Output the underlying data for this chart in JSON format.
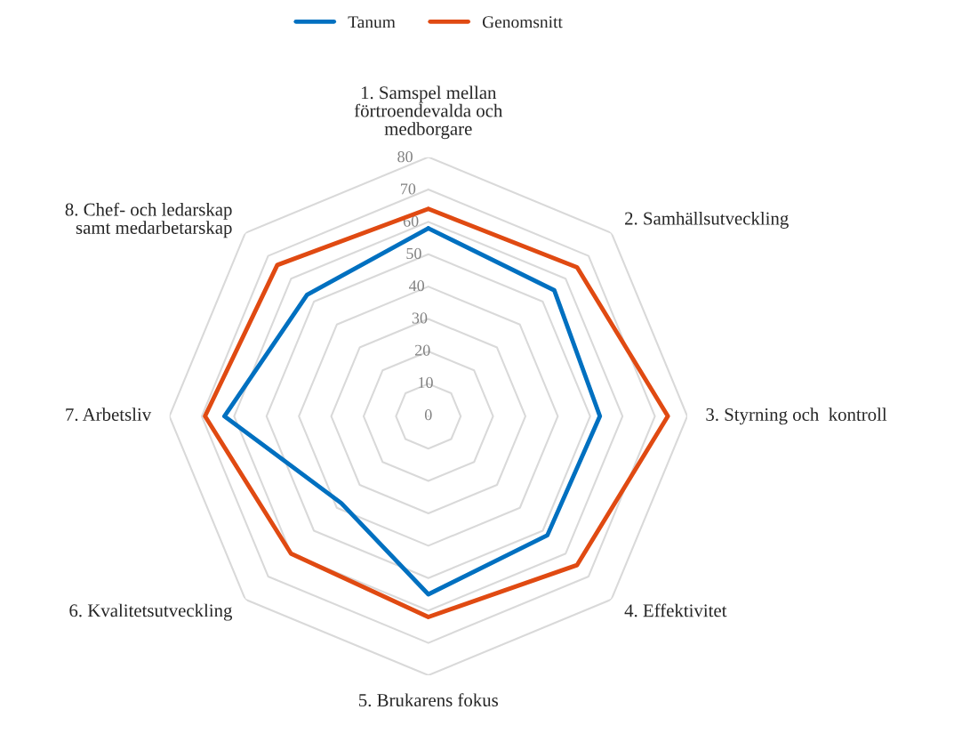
{
  "chart_data": {
    "type": "radar",
    "categories": [
      "1. Samspel mellan\nförtroendevalda och\nmedborgare",
      "2. Samhällsutveckling",
      "3. Styrning och  kontroll",
      "4. Effektivitet",
      "5. Brukarens fokus",
      "6. Kvalitetsutveckling",
      "7. Arbetsliv",
      "8. Chef- och ledarskap\nsamt medarbetarskap"
    ],
    "series": [
      {
        "name": "Tanum",
        "color": "#0070c0",
        "values": [
          58,
          55,
          53,
          52,
          55,
          38,
          63,
          53
        ]
      },
      {
        "name": "Genomsnitt",
        "color": "#e04a12",
        "values": [
          64,
          65,
          74,
          65,
          62,
          60,
          69,
          66
        ]
      }
    ],
    "ylim": [
      0,
      80
    ],
    "yticks": [
      0,
      10,
      20,
      30,
      40,
      50,
      60,
      70,
      80
    ],
    "grid": true,
    "legend": "top",
    "marker": "none",
    "line_style": "solid"
  }
}
